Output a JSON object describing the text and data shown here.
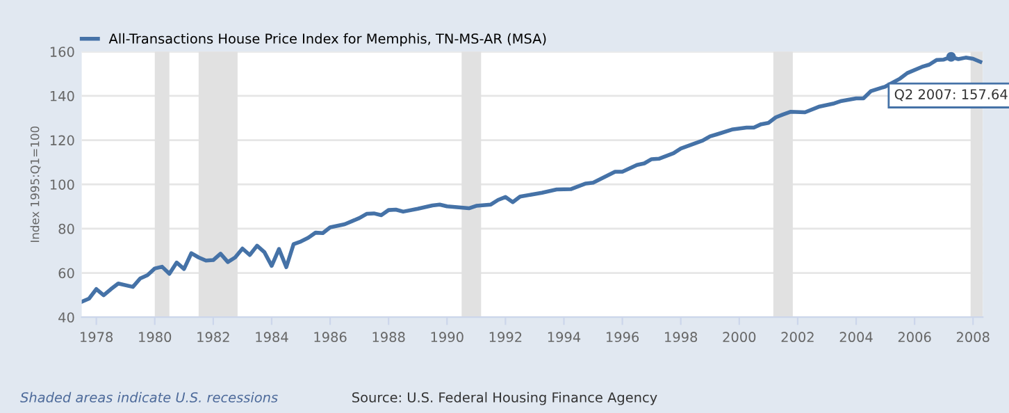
{
  "chart_data": {
    "type": "line",
    "ylabel": "Index 1995:Q1=100",
    "x": [
      "1977-07",
      "1977-10",
      "1978-01",
      "1978-04",
      "1978-07",
      "1978-10",
      "1979-04",
      "1979-07",
      "1979-10",
      "1980-01",
      "1980-04",
      "1980-07",
      "1980-10",
      "1981-01",
      "1981-04",
      "1981-07",
      "1981-10",
      "1982-01",
      "1982-04",
      "1982-07",
      "1982-10",
      "1983-01",
      "1983-04",
      "1983-07",
      "1983-10",
      "1984-01",
      "1984-04",
      "1984-07",
      "1984-10",
      "1985-01",
      "1985-04",
      "1985-07",
      "1985-10",
      "1986-01",
      "1986-07",
      "1987-01",
      "1987-04",
      "1987-07",
      "1987-10",
      "1988-01",
      "1988-04",
      "1988-07",
      "1989-01",
      "1989-07",
      "1989-10",
      "1990-01",
      "1990-10",
      "1991-01",
      "1991-07",
      "1991-10",
      "1992-01",
      "1992-04",
      "1992-07",
      "1993-04",
      "1993-10",
      "1994-04",
      "1994-10",
      "1995-01",
      "1995-10",
      "1996-01",
      "1996-07",
      "1996-10",
      "1997-01",
      "1997-04",
      "1997-10",
      "1998-01",
      "1998-10",
      "1999-01",
      "1999-04",
      "1999-10",
      "2000-04",
      "2000-07",
      "2000-10",
      "2001-01",
      "2001-04",
      "2001-07",
      "2001-10",
      "2002-04",
      "2002-10",
      "2003-04",
      "2003-07",
      "2004-01",
      "2004-04",
      "2004-07",
      "2005-01",
      "2005-07",
      "2005-10",
      "2006-04",
      "2006-07",
      "2006-10",
      "2007-01",
      "2007-04",
      "2007-07",
      "2007-10",
      "2008-01",
      "2008-04"
    ],
    "series": [
      {
        "name": "All-Transactions House Price Index for Memphis, TN-MS-AR (MSA)",
        "color": "#4572a7",
        "values": [
          47.0,
          48.4,
          52.7,
          49.9,
          52.7,
          55.2,
          53.7,
          57.5,
          59.0,
          62.0,
          62.8,
          59.6,
          64.7,
          61.8,
          68.9,
          67.0,
          65.6,
          65.8,
          68.7,
          64.9,
          67.0,
          71.0,
          68.1,
          72.3,
          69.4,
          63.2,
          70.8,
          62.6,
          73.0,
          74.2,
          75.9,
          78.2,
          78.0,
          80.6,
          82.0,
          84.8,
          86.7,
          86.9,
          86.1,
          88.4,
          88.6,
          87.7,
          89.0,
          90.5,
          90.9,
          90.1,
          89.2,
          90.3,
          90.9,
          93.0,
          94.3,
          92.0,
          94.5,
          96.2,
          97.7,
          97.9,
          100.4,
          100.8,
          105.7,
          105.7,
          108.8,
          109.5,
          111.4,
          111.6,
          114.1,
          116.2,
          119.8,
          121.7,
          122.7,
          124.8,
          125.7,
          125.7,
          127.2,
          127.8,
          130.3,
          131.6,
          132.8,
          132.6,
          135.2,
          136.6,
          137.7,
          138.9,
          138.9,
          142.1,
          144.2,
          147.8,
          150.3,
          153.1,
          154.1,
          156.2,
          156.4,
          157.64,
          156.6,
          157.3,
          156.8,
          155.4
        ]
      }
    ],
    "xlim": [
      "1977-07",
      "2008-05"
    ],
    "xticks": [
      "1978",
      "1980",
      "1982",
      "1984",
      "1986",
      "1988",
      "1990",
      "1992",
      "1994",
      "1996",
      "1998",
      "2000",
      "2002",
      "2004",
      "2006",
      "2008"
    ],
    "ylim": [
      40,
      160
    ],
    "yticks": [
      40,
      60,
      80,
      100,
      120,
      140,
      160
    ],
    "grid": "y",
    "legend": "top left",
    "marker": "none",
    "line_style": "solid",
    "bands": [
      {
        "axis": "x",
        "from": "1980-01",
        "to": "1980-07",
        "color": "#e1e1e1"
      },
      {
        "axis": "x",
        "from": "1981-07",
        "to": "1982-11",
        "color": "#e1e1e1"
      },
      {
        "axis": "x",
        "from": "1990-07",
        "to": "1991-03",
        "color": "#e1e1e1"
      },
      {
        "axis": "x",
        "from": "2001-03",
        "to": "2001-11",
        "color": "#e1e1e1"
      },
      {
        "axis": "x",
        "from": "2007-12",
        "to": "2008-05",
        "color": "#e1e1e1"
      }
    ],
    "annotations": [
      {
        "text": "Q2 2007: 157.64",
        "x": "2007-04",
        "y": 157.64
      },
      "Shaded areas indicate U.S. recessions",
      "Source: U.S. Federal Housing Finance Agency"
    ]
  }
}
